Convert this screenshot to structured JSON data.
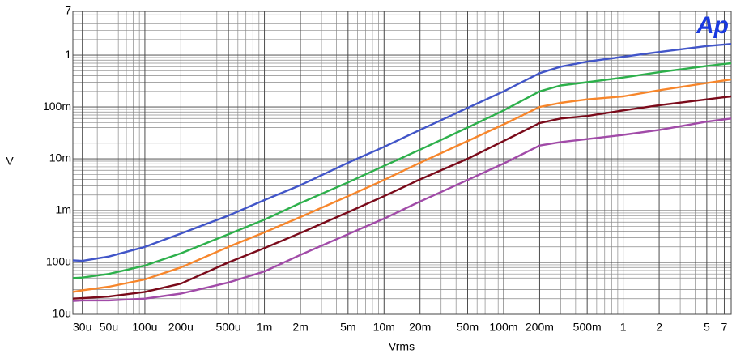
{
  "chart_data": {
    "type": "line",
    "x_label": "Vrms",
    "y_label": "V",
    "logo": "Ap",
    "xlog": true,
    "ylog": true,
    "grid": true,
    "xlim": [
      2.5e-05,
      8
    ],
    "ylim": [
      1e-05,
      7
    ],
    "xticks": [
      {
        "value": 3e-05,
        "label": "30u"
      },
      {
        "value": 5e-05,
        "label": "50u"
      },
      {
        "value": 0.0001,
        "label": "100u"
      },
      {
        "value": 0.0002,
        "label": "200u"
      },
      {
        "value": 0.0005,
        "label": "500u"
      },
      {
        "value": 0.001,
        "label": "1m"
      },
      {
        "value": 0.002,
        "label": "2m"
      },
      {
        "value": 0.005,
        "label": "5m"
      },
      {
        "value": 0.01,
        "label": "10m"
      },
      {
        "value": 0.02,
        "label": "20m"
      },
      {
        "value": 0.05,
        "label": "50m"
      },
      {
        "value": 0.1,
        "label": "100m"
      },
      {
        "value": 0.2,
        "label": "200m"
      },
      {
        "value": 0.5,
        "label": "500m"
      },
      1,
      2,
      5,
      7
    ],
    "yticks": [
      7,
      1,
      {
        "value": 0.1,
        "label": "100m"
      },
      {
        "value": 0.01,
        "label": "10m"
      },
      {
        "value": 0.001,
        "label": "1m"
      },
      {
        "value": 0.0001,
        "label": "100u"
      },
      {
        "value": 1e-05,
        "label": "10u"
      }
    ],
    "x": [
      2.5e-05,
      3e-05,
      5e-05,
      0.0001,
      0.0002,
      0.0005,
      0.001,
      0.002,
      0.005,
      0.01,
      0.02,
      0.05,
      0.1,
      0.2,
      0.3,
      0.5,
      1,
      2,
      5,
      8
    ],
    "series": [
      {
        "color": "#4155c8",
        "values": [
          0.00011,
          0.000107,
          0.00013,
          0.0002,
          0.00036,
          0.0008,
          0.0016,
          0.0031,
          0.0084,
          0.017,
          0.036,
          0.096,
          0.2,
          0.45,
          0.6,
          0.75,
          0.93,
          1.15,
          1.5,
          1.65
        ]
      },
      {
        "color": "#2db04b",
        "values": [
          5e-05,
          5.1e-05,
          6e-05,
          8.7e-05,
          0.00015,
          0.00035,
          0.00067,
          0.0014,
          0.0035,
          0.0073,
          0.015,
          0.04,
          0.086,
          0.2,
          0.26,
          0.3,
          0.37,
          0.47,
          0.62,
          0.7
        ]
      },
      {
        "color": "#f7862b",
        "values": [
          2.7e-05,
          2.9e-05,
          3.4e-05,
          4.7e-05,
          8e-05,
          0.0002,
          0.00038,
          0.00075,
          0.0019,
          0.0039,
          0.0084,
          0.022,
          0.046,
          0.1,
          0.12,
          0.14,
          0.16,
          0.21,
          0.29,
          0.34
        ]
      },
      {
        "color": "#7a0a1a",
        "values": [
          2e-05,
          2.05e-05,
          2.2e-05,
          2.7e-05,
          3.9e-05,
          0.0001,
          0.00019,
          0.00037,
          0.00093,
          0.0019,
          0.004,
          0.01,
          0.022,
          0.049,
          0.06,
          0.067,
          0.086,
          0.108,
          0.14,
          0.16
        ]
      },
      {
        "color": "#a14ba8",
        "values": [
          1.8e-05,
          1.85e-05,
          1.85e-05,
          2e-05,
          2.5e-05,
          4.1e-05,
          6.7e-05,
          0.00014,
          0.00035,
          0.0007,
          0.0015,
          0.0039,
          0.0081,
          0.018,
          0.021,
          0.024,
          0.029,
          0.036,
          0.052,
          0.06
        ]
      }
    ]
  }
}
